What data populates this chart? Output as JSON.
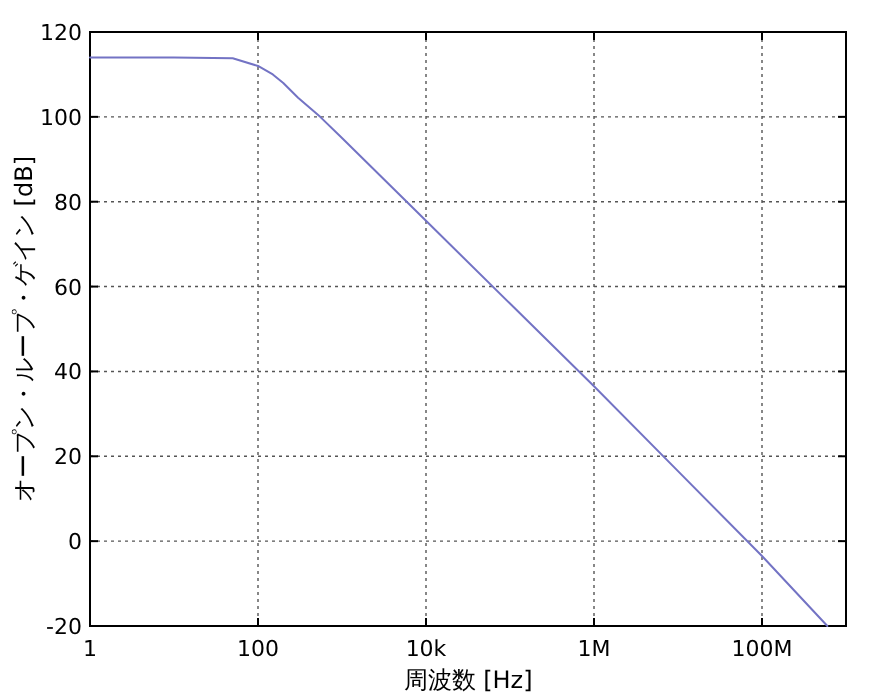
{
  "chart_data": {
    "type": "line",
    "xlabel": "周波数 [Hz]",
    "ylabel": "オープン・ループ・ゲイン [dB]",
    "log": "x",
    "grid": true,
    "line_style": "solid",
    "marker": "none",
    "x": [
      1,
      10,
      50,
      100,
      150,
      200,
      300,
      550,
      1000,
      10000,
      100000,
      1000000,
      10000000,
      100000000,
      600000000
    ],
    "series": [
      {
        "color": "#7373c4",
        "values": [
          114,
          114,
          113.8,
          112,
          110,
          108,
          104.5,
          100,
          95,
          75.5,
          56,
          36.5,
          16.5,
          -3.5,
          -20
        ]
      }
    ],
    "xlim": [
      1,
      1000000000
    ],
    "xticks": [
      1,
      100,
      {
        "value": 10000,
        "label": "10k"
      },
      {
        "value": 1000000,
        "label": "1M"
      },
      {
        "value": 100000000,
        "label": "100M"
      }
    ],
    "ylim": [
      -20,
      120
    ],
    "yticks": [
      -20,
      0,
      20,
      40,
      60,
      80,
      100,
      120
    ]
  }
}
